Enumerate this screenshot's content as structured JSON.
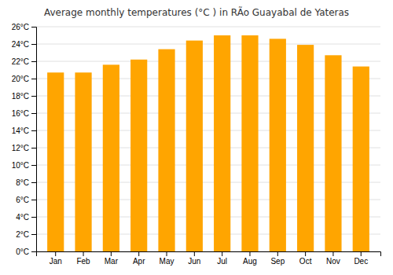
{
  "chart_data": {
    "type": "bar",
    "title": "Average monthly temperatures (°C ) in RÃ­o Guayabal de Yateras",
    "categories": [
      "Jan",
      "Feb",
      "Mar",
      "Apr",
      "May",
      "Jun",
      "Jul",
      "Aug",
      "Sep",
      "Oct",
      "Nov",
      "Dec"
    ],
    "values": [
      20.7,
      20.7,
      21.6,
      22.2,
      23.4,
      24.4,
      25.0,
      25.0,
      24.6,
      23.9,
      22.7,
      21.4
    ],
    "color": "#FFA500",
    "ylim": [
      0,
      26
    ],
    "yticks": [
      {
        "value": 0,
        "label": "0°C"
      },
      {
        "value": 2,
        "label": "2°C"
      },
      {
        "value": 4,
        "label": "4°C"
      },
      {
        "value": 6,
        "label": "6°C"
      },
      {
        "value": 8,
        "label": "8°C"
      },
      {
        "value": 10,
        "label": "10°C"
      },
      {
        "value": 12,
        "label": "12°C"
      },
      {
        "value": 14,
        "label": "14°C"
      },
      {
        "value": 16,
        "label": "16°C"
      },
      {
        "value": 18,
        "label": "18°C"
      },
      {
        "value": 20,
        "label": "20°C"
      },
      {
        "value": 22,
        "label": "22°C"
      },
      {
        "value": 24,
        "label": "24°C"
      },
      {
        "value": 26,
        "label": "26°C"
      }
    ],
    "grid": true
  }
}
